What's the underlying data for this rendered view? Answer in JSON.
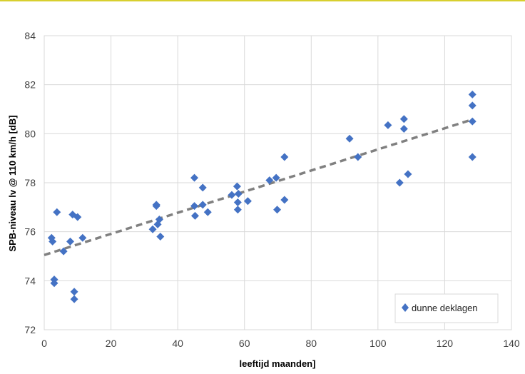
{
  "chart_data": {
    "type": "scatter",
    "title": "",
    "xlabel": "leeftijd maanden]",
    "ylabel": "SPB-niveau lv @ 110 km/h [dB]",
    "xlim": [
      0,
      140
    ],
    "ylim": [
      72,
      84
    ],
    "xticks": [
      0,
      20,
      40,
      60,
      80,
      100,
      120,
      140
    ],
    "yticks": [
      72,
      74,
      76,
      78,
      80,
      82,
      84
    ],
    "grid": true,
    "legend_position": "bottom-right",
    "series": [
      {
        "name": "dunne deklagen",
        "color": "#4472c4",
        "marker": "diamond",
        "x": [
          2.2,
          2.5,
          3.0,
          3.0,
          3.8,
          5.8,
          7.8,
          8.5,
          9.0,
          9.0,
          10.0,
          11.5,
          32.5,
          33.6,
          33.6,
          34.0,
          34.5,
          34.8,
          45.0,
          45.0,
          45.2,
          47.5,
          47.5,
          49.0,
          56.2,
          57.8,
          58.0,
          58.0,
          58.2,
          61.0,
          67.5,
          69.5,
          69.8,
          72.0,
          72.0,
          91.5,
          94.0,
          103.0,
          106.5,
          107.8,
          107.8,
          109.0,
          128.3,
          128.3,
          128.3,
          128.3
        ],
        "y": [
          75.75,
          75.6,
          74.05,
          73.9,
          76.8,
          75.2,
          75.6,
          76.7,
          73.55,
          73.25,
          76.6,
          75.75,
          76.1,
          77.1,
          77.05,
          76.3,
          76.5,
          75.8,
          78.2,
          77.05,
          76.65,
          77.8,
          77.1,
          76.8,
          77.5,
          77.85,
          77.2,
          76.9,
          77.55,
          77.25,
          78.1,
          78.2,
          76.9,
          79.05,
          77.3,
          79.8,
          79.05,
          80.35,
          78.0,
          80.6,
          80.2,
          78.35,
          81.6,
          81.15,
          80.5,
          79.05
        ]
      }
    ],
    "trendline": {
      "type": "linear",
      "style": "dashed",
      "color": "#808080",
      "x": [
        0,
        128.3
      ],
      "y": [
        75.05,
        80.58
      ]
    }
  }
}
